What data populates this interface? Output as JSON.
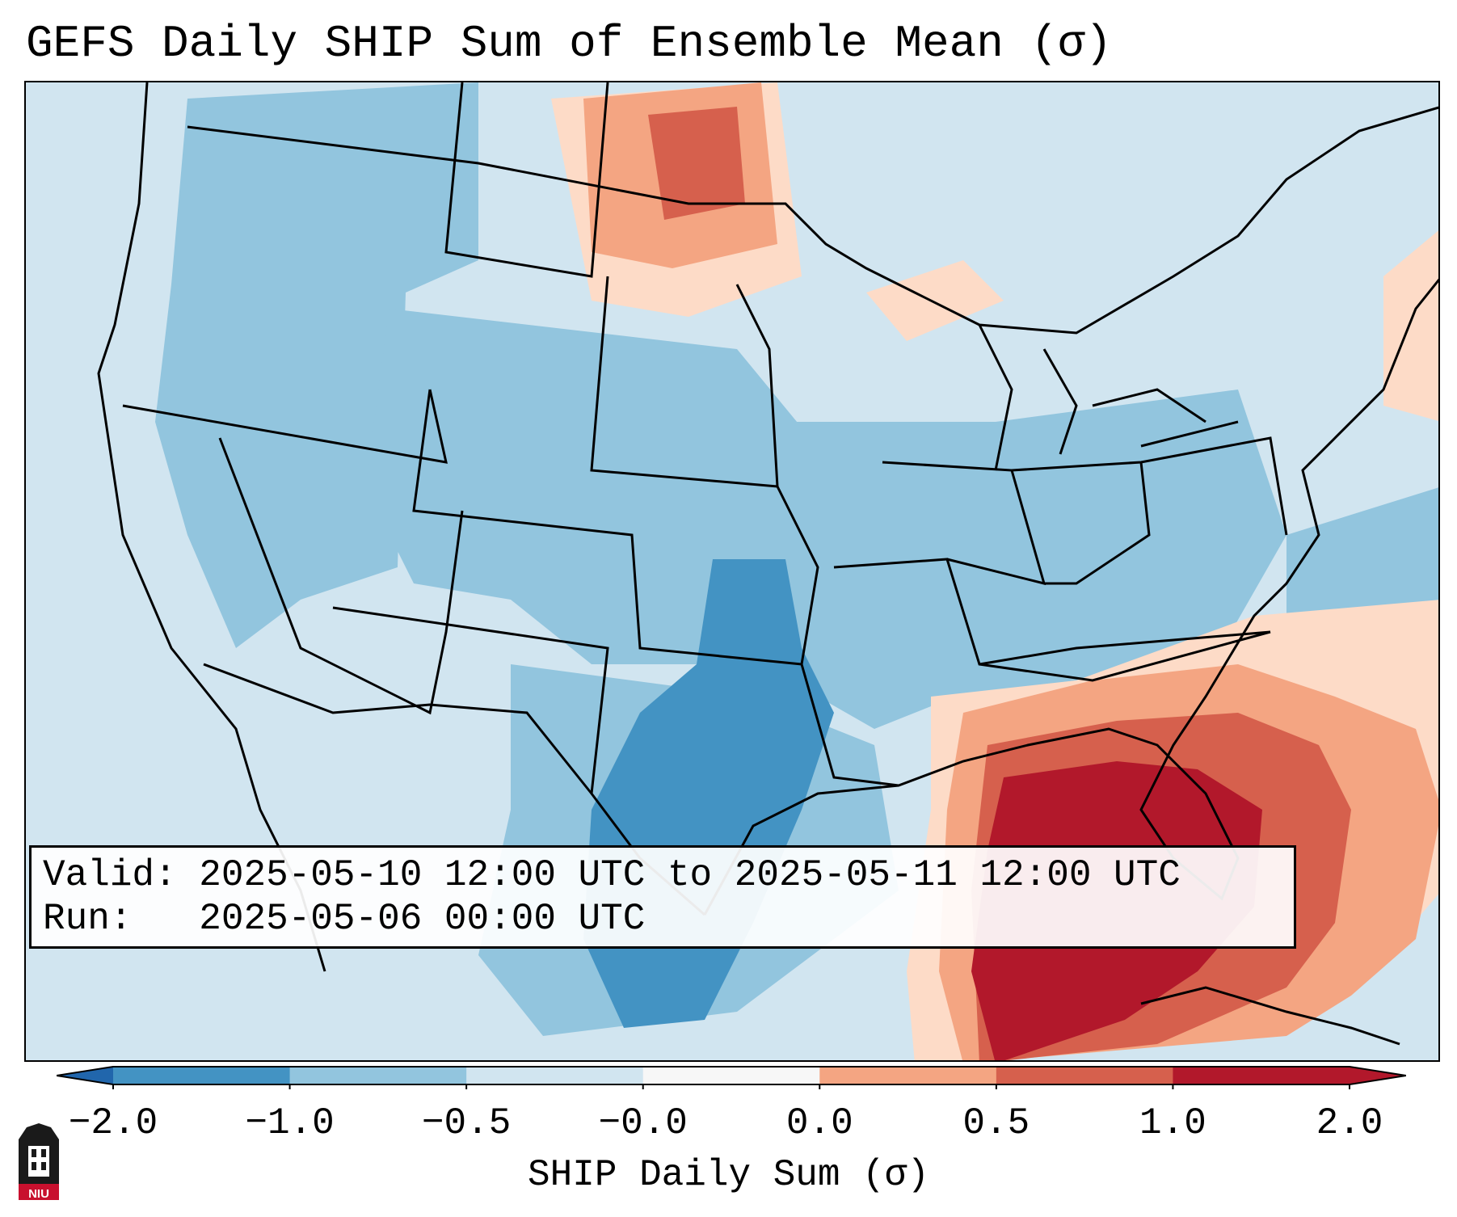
{
  "title": "GEFS Daily SHIP Sum of Ensemble Mean (σ)",
  "valid_label": "Valid:",
  "valid_text": "2025-05-10 12:00 UTC to 2025-05-11 12:00 UTC",
  "run_label": "Run:",
  "run_text": "2025-05-06 00:00 UTC",
  "colorbar": {
    "label": "SHIP Daily Sum (σ)",
    "ticks": [
      "−2.0",
      "−1.0",
      "−0.5",
      "−0.0",
      "0.0",
      "0.5",
      "1.0",
      "2.0"
    ],
    "colors": [
      "#2166ac",
      "#4393c3",
      "#92c5de",
      "#d1e5f0",
      "#fddbc7",
      "#f4a582",
      "#d6604d",
      "#b2182b"
    ],
    "extend": "both"
  },
  "logo_text": "NIU",
  "colors": {
    "ocean_background": "#d1e5f0",
    "boundaries": "#000000"
  }
}
